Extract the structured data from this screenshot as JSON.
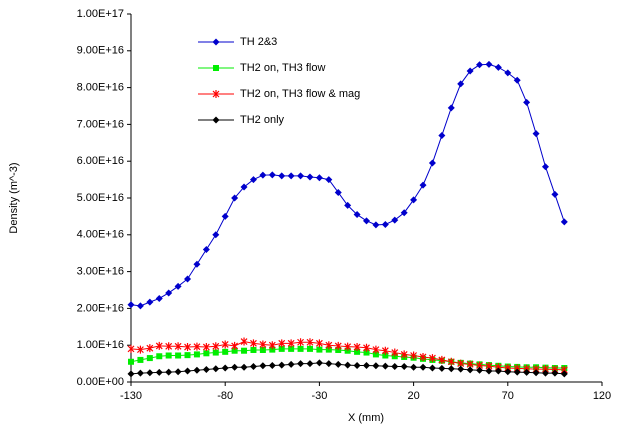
{
  "chart_data": {
    "type": "line",
    "x_label": "X (mm)",
    "y_label": "Density (m^-3)",
    "legend": "upper left",
    "grid": false,
    "xlim": [
      -130,
      120
    ],
    "xticks": [
      -130,
      -80,
      -30,
      20,
      70,
      120
    ],
    "ylim": [
      0,
      1e+17
    ],
    "yticks": [
      {
        "value": 0,
        "label": "0.00E+00"
      },
      {
        "value": 1e+16,
        "label": "1.00E+16"
      },
      {
        "value": 2e+16,
        "label": "2.00E+16"
      },
      {
        "value": 3e+16,
        "label": "3.00E+16"
      },
      {
        "value": 4e+16,
        "label": "4.00E+16"
      },
      {
        "value": 5e+16,
        "label": "5.00E+16"
      },
      {
        "value": 6e+16,
        "label": "6.00E+16"
      },
      {
        "value": 7e+16,
        "label": "7.00E+16"
      },
      {
        "value": 8e+16,
        "label": "8.00E+16"
      },
      {
        "value": 9e+16,
        "label": "9.00E+16"
      },
      {
        "value": 1e+17,
        "label": "1.00E+17"
      }
    ],
    "x": [
      -130,
      -125,
      -120,
      -115,
      -110,
      -105,
      -100,
      -95,
      -90,
      -85,
      -80,
      -75,
      -70,
      -65,
      -60,
      -55,
      -50,
      -45,
      -40,
      -35,
      -30,
      -25,
      -20,
      -15,
      -10,
      -5,
      0,
      5,
      10,
      15,
      20,
      25,
      30,
      35,
      40,
      45,
      50,
      55,
      60,
      65,
      70,
      75,
      80,
      85,
      90,
      95,
      100
    ],
    "series": [
      {
        "name": "TH 2&3",
        "color": "#0000cc",
        "marker": "diamond",
        "values": [
          2.1e+16,
          2.07e+16,
          2.17e+16,
          2.27e+16,
          2.42e+16,
          2.6e+16,
          2.8e+16,
          3.2e+16,
          3.6e+16,
          4e+16,
          4.5e+16,
          5e+16,
          5.3e+16,
          5.5e+16,
          5.62e+16,
          5.63e+16,
          5.6e+16,
          5.6e+16,
          5.6e+16,
          5.57e+16,
          5.55e+16,
          5.5e+16,
          5.15e+16,
          4.8e+16,
          4.55e+16,
          4.38e+16,
          4.27e+16,
          4.28e+16,
          4.4e+16,
          4.6e+16,
          4.95e+16,
          5.35e+16,
          5.95e+16,
          6.7e+16,
          7.45e+16,
          8.1e+16,
          8.45e+16,
          8.62e+16,
          8.63e+16,
          8.55e+16,
          8.4e+16,
          8.2e+16,
          7.6e+16,
          6.75e+16,
          5.85e+16,
          5.1e+16,
          4.35e+16
        ]
      },
      {
        "name": "TH2 on, TH3 flow",
        "color": "#00ee00",
        "marker": "square",
        "values": [
          5500000000000000.0,
          6000000000000000.0,
          6500000000000000.0,
          7000000000000000.0,
          7200000000000000.0,
          7200000000000000.0,
          7300000000000000.0,
          7500000000000000.0,
          7800000000000000.0,
          8000000000000000.0,
          8200000000000000.0,
          8500000000000000.0,
          8500000000000000.0,
          8700000000000000.0,
          8700000000000000.0,
          8800000000000000.0,
          9000000000000000.0,
          9000000000000000.0,
          9000000000000000.0,
          9000000000000000.0,
          8800000000000000.0,
          8800000000000000.0,
          8700000000000000.0,
          8500000000000000.0,
          8200000000000000.0,
          8000000000000000.0,
          7500000000000000.0,
          7200000000000000.0,
          7000000000000000.0,
          6800000000000000.0,
          6600000000000000.0,
          6300000000000000.0,
          6000000000000000.0,
          5800000000000000.0,
          5500000000000000.0,
          5200000000000000.0,
          5000000000000000.0,
          4800000000000000.0,
          4600000000000000.0,
          4400000000000000.0,
          4200000000000000.0,
          4100000000000000.0,
          4000000000000000.0,
          4000000000000000.0,
          3900000000000000.0,
          3800000000000000.0,
          3800000000000000.0
        ]
      },
      {
        "name": "TH2 on, TH3 flow & mag",
        "color": "#ff0000",
        "marker": "star",
        "values": [
          9000000000000000.0,
          8800000000000000.0,
          9200000000000000.0,
          9800000000000000.0,
          9700000000000000.0,
          9700000000000000.0,
          9500000000000000.0,
          9600000000000000.0,
          9500000000000000.0,
          9700000000000000.0,
          1.02e+16,
          9800000000000000.0,
          1.1e+16,
          1.05e+16,
          1.02e+16,
          1e+16,
          1.05e+16,
          1.05e+16,
          1.08e+16,
          1.08e+16,
          1.05e+16,
          1e+16,
          9800000000000000.0,
          9600000000000000.0,
          9500000000000000.0,
          9300000000000000.0,
          8800000000000000.0,
          8500000000000000.0,
          8000000000000000.0,
          7500000000000000.0,
          7200000000000000.0,
          6800000000000000.0,
          6500000000000000.0,
          6000000000000000.0,
          5500000000000000.0,
          5000000000000000.0,
          4800000000000000.0,
          4500000000000000.0,
          4300000000000000.0,
          4000000000000000.0,
          3800000000000000.0,
          3700000000000000.0,
          3600000000000000.0,
          3500000000000000.0,
          3500000000000000.0,
          3400000000000000.0,
          3300000000000000.0
        ]
      },
      {
        "name": "TH2 only",
        "color": "#000000",
        "marker": "diamond",
        "values": [
          2200000000000000.0,
          2400000000000000.0,
          2500000000000000.0,
          2600000000000000.0,
          2700000000000000.0,
          2800000000000000.0,
          3000000000000000.0,
          3200000000000000.0,
          3400000000000000.0,
          3600000000000000.0,
          3800000000000000.0,
          4000000000000000.0,
          4000000000000000.0,
          4200000000000000.0,
          4400000000000000.0,
          4500000000000000.0,
          4600000000000000.0,
          4800000000000000.0,
          5000000000000000.0,
          5000000000000000.0,
          5200000000000000.0,
          5000000000000000.0,
          4800000000000000.0,
          4600000000000000.0,
          4500000000000000.0,
          4500000000000000.0,
          4400000000000000.0,
          4300000000000000.0,
          4200000000000000.0,
          4200000000000000.0,
          4000000000000000.0,
          4000000000000000.0,
          3800000000000000.0,
          3700000000000000.0,
          3600000000000000.0,
          3500000000000000.0,
          3300000000000000.0,
          3200000000000000.0,
          3000000000000000.0,
          3000000000000000.0,
          2800000000000000.0,
          2700000000000000.0,
          2600000000000000.0,
          2500000000000000.0,
          2400000000000000.0,
          2400000000000000.0,
          2200000000000000.0
        ]
      }
    ]
  }
}
